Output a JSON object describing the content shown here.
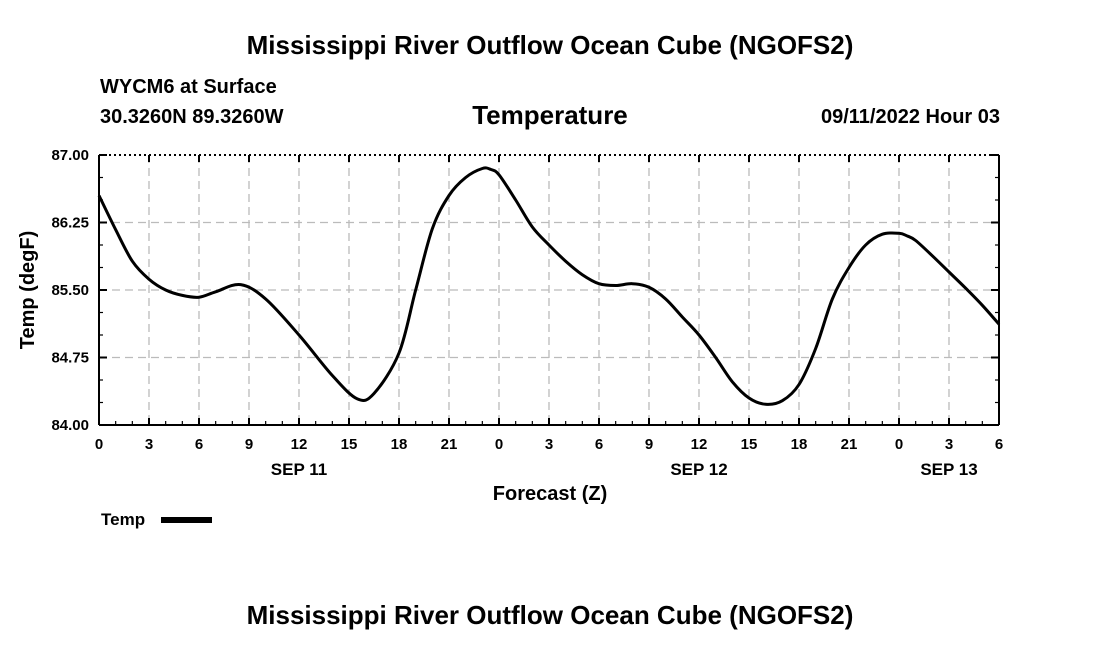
{
  "header": {
    "title": "Mississippi River Outflow Ocean Cube (NGOFS2)",
    "station": "WYCM6 at Surface",
    "coords": "30.3260N  89.3260W",
    "datetime": "09/11/2022 Hour 03"
  },
  "footer": {
    "title": "Mississippi River Outflow Ocean Cube (NGOFS2)"
  },
  "chart_data": {
    "type": "line",
    "title": "Temperature",
    "xlabel": "Forecast (Z)",
    "ylabel": "Temp (degF)",
    "xlim": [
      0,
      54
    ],
    "ylim": [
      84.0,
      87.0
    ],
    "y_ticks": [
      "84.00",
      "84.75",
      "85.50",
      "86.25",
      "87.00"
    ],
    "x_tick_labels": [
      "0",
      "3",
      "6",
      "9",
      "12",
      "15",
      "18",
      "21",
      "0",
      "3",
      "6",
      "9",
      "12",
      "15",
      "18",
      "21",
      "0",
      "3",
      "6"
    ],
    "day_labels": [
      {
        "label": "SEP 11",
        "hour": 12
      },
      {
        "label": "SEP 12",
        "hour": 36
      },
      {
        "label": "SEP 13",
        "hour": 51
      }
    ],
    "grid": true,
    "legend": {
      "position": "bottom-left",
      "label": "Temp"
    },
    "series": [
      {
        "name": "Temp",
        "color": "#000000",
        "x": [
          0,
          1,
          2,
          3,
          4,
          5,
          6,
          7,
          8.5,
          10,
          12,
          14,
          15.5,
          16.5,
          18,
          19,
          20,
          21,
          22,
          23,
          23.5,
          24,
          25,
          26,
          27,
          28,
          29,
          30,
          31,
          32,
          33,
          34,
          35,
          36,
          37,
          38,
          39,
          40,
          41,
          42,
          43,
          44,
          45,
          46,
          47,
          48,
          48.5,
          49,
          50,
          51,
          52,
          53,
          54
        ],
        "values": [
          86.55,
          86.17,
          85.82,
          85.62,
          85.5,
          85.44,
          85.42,
          85.48,
          85.56,
          85.4,
          85.0,
          84.55,
          84.29,
          84.35,
          84.8,
          85.5,
          86.18,
          86.55,
          86.75,
          86.85,
          86.84,
          86.78,
          86.5,
          86.2,
          86.0,
          85.82,
          85.67,
          85.57,
          85.55,
          85.57,
          85.53,
          85.4,
          85.2,
          85.0,
          84.75,
          84.48,
          84.3,
          84.23,
          84.27,
          84.45,
          84.85,
          85.4,
          85.75,
          86.0,
          86.12,
          86.13,
          86.1,
          86.05,
          85.88,
          85.7,
          85.52,
          85.33,
          85.12
        ]
      }
    ]
  }
}
